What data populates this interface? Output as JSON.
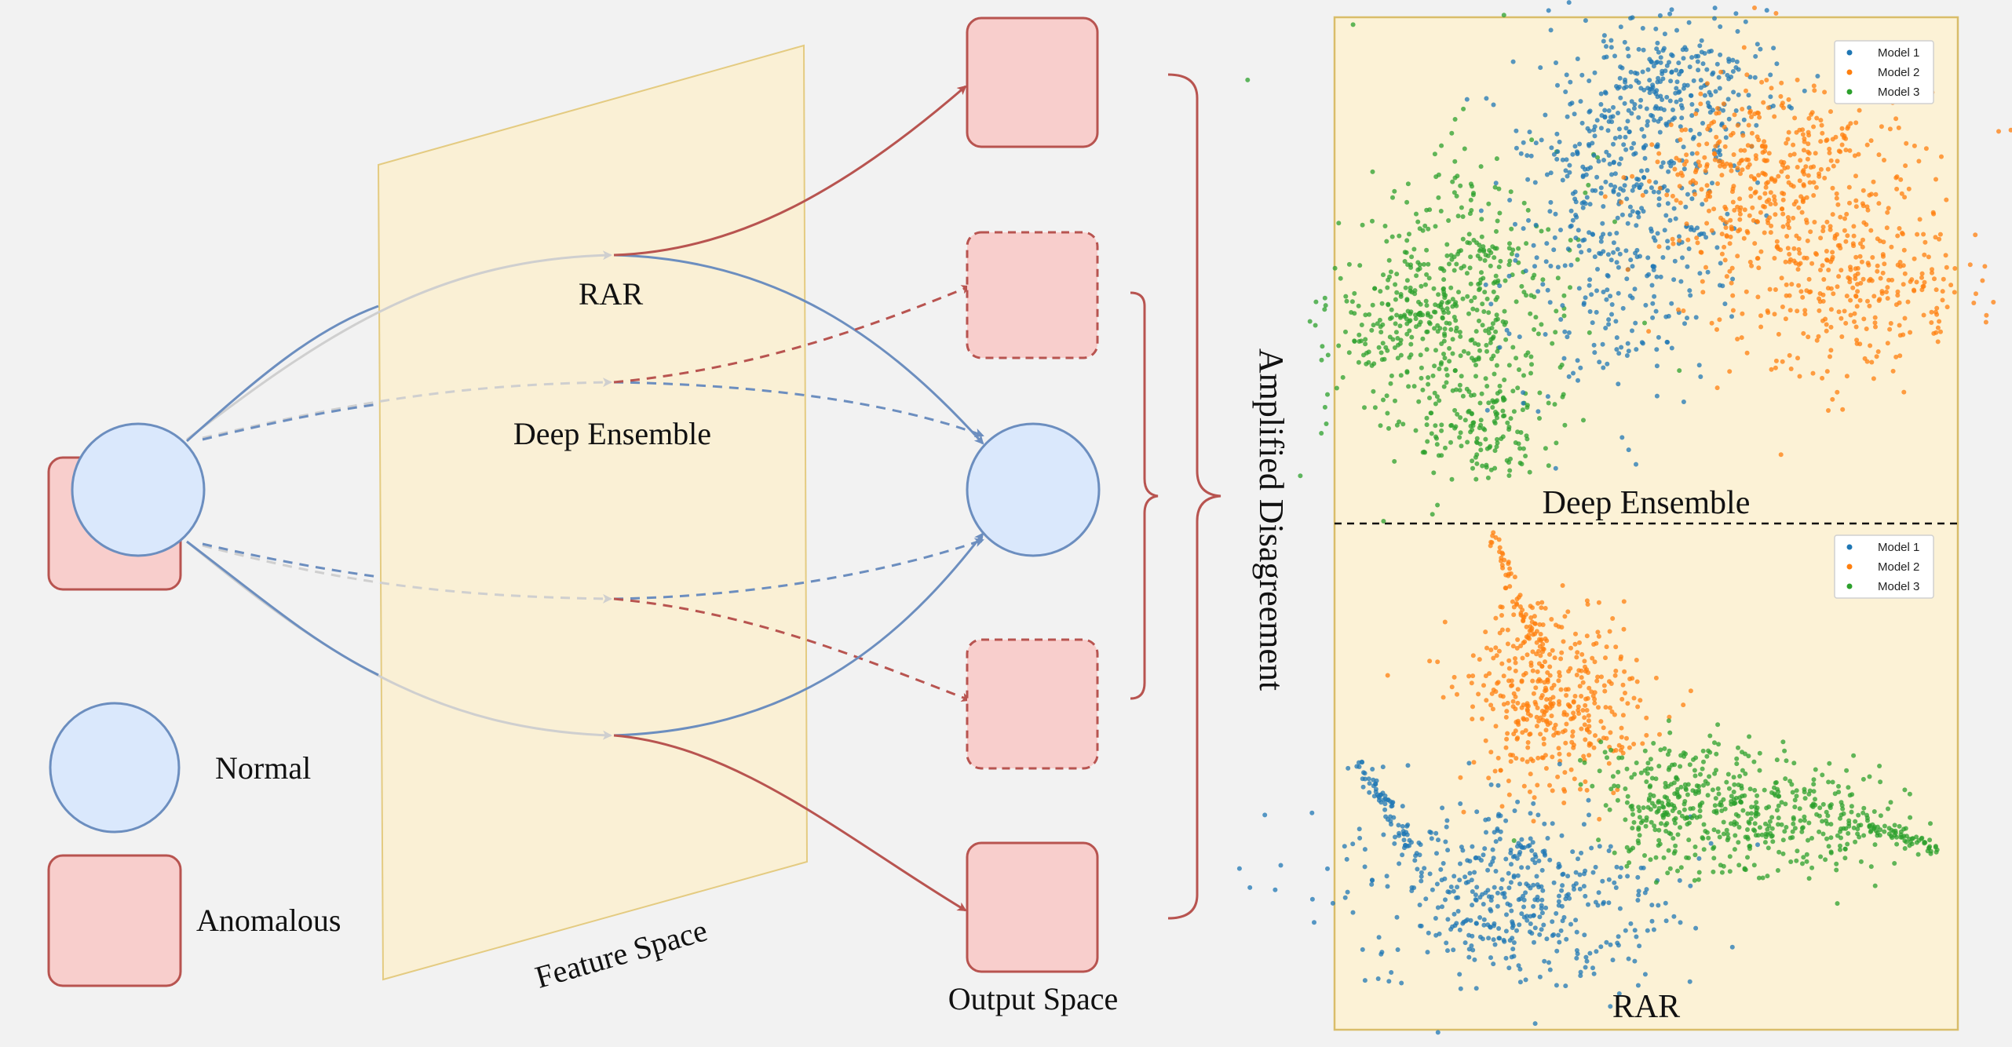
{
  "labels": {
    "rar_path": "RAR",
    "deep_ensemble_path": "Deep Ensemble",
    "feature_space": "Feature Space",
    "output_space": "Output Space",
    "amplified_disagreement": "Amplified Disagreement"
  },
  "legend": {
    "normal": "Normal",
    "anomalous": "Anomalous"
  },
  "panels": {
    "top": {
      "caption": "Deep Ensemble",
      "legend": [
        "Model 1",
        "Model 2",
        "Model 3"
      ]
    },
    "bottom": {
      "caption": "RAR",
      "legend": [
        "Model 1",
        "Model 2",
        "Model 3"
      ]
    }
  },
  "colors": {
    "background": "#f2f2f2",
    "normal_fill": "#dae8fc",
    "normal_stroke": "#6c8ebf",
    "anomalous_fill": "#f8cecc",
    "anomalous_stroke": "#b85450",
    "feature_plane_fill": "#fbf0d3",
    "feature_plane_stroke": "#e3c878",
    "panel_fill": "#fcf2d6",
    "panel_stroke": "#d9bd6a",
    "arrow_blue": "#6c8ebf",
    "arrow_red": "#b85450",
    "arrow_grey": "#cfcfcf",
    "model1": "#1f77b4",
    "model2": "#ff7f0e",
    "model3": "#2ca02c"
  }
}
